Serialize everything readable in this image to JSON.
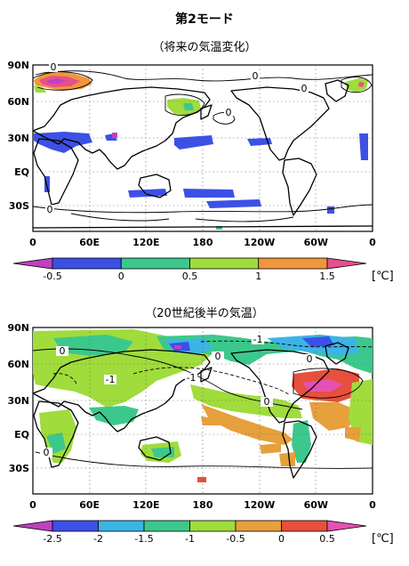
{
  "header": {
    "title": "第2モード",
    "subtitle_top": "（将来の気温変化）",
    "subtitle_bottom": "（20世紀後半の気温）"
  },
  "chart_data": [
    {
      "type": "heatmap",
      "title": "（将来の気温変化）",
      "x_ticks": [
        "0",
        "60E",
        "120E",
        "180",
        "120W",
        "60W",
        "0"
      ],
      "y_ticks": [
        "90N",
        "60N",
        "30N",
        "EQ",
        "30S"
      ],
      "colorbar": {
        "tick_labels": [
          "-0.5",
          "0",
          "0.5",
          "1",
          "1.5"
        ],
        "unit": "[℃]",
        "colors": [
          "#c040c0",
          "#3c50e6",
          "#3cc88c",
          "#a0dc3c",
          "#f0963c",
          "#e6508c"
        ]
      },
      "contour_labels": [
        "0",
        "0",
        "0",
        "0",
        "0"
      ]
    },
    {
      "type": "heatmap",
      "title": "（20世紀後半の気温）",
      "x_ticks": [
        "0",
        "60E",
        "120E",
        "180",
        "120W",
        "60W",
        "0"
      ],
      "y_ticks": [
        "90N",
        "60N",
        "30N",
        "EQ",
        "30S"
      ],
      "colorbar": {
        "tick_labels": [
          "-2.5",
          "-2",
          "-1.5",
          "-1",
          "-0.5",
          "0",
          "0.5"
        ],
        "unit": "[℃]",
        "colors": [
          "#c040c0",
          "#3c50e6",
          "#3cb4e6",
          "#3cc88c",
          "#a0dc3c",
          "#e6a03c",
          "#e6503c",
          "#e650b4"
        ]
      },
      "contour_labels": [
        "0",
        "-1",
        "-1",
        "-1",
        "0",
        "0",
        "0",
        "0"
      ]
    }
  ]
}
